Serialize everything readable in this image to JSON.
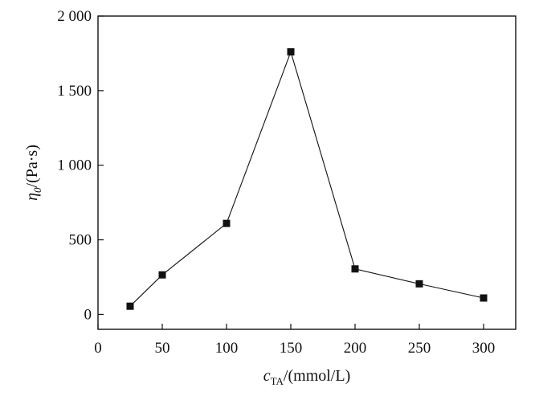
{
  "chart_data": {
    "type": "line",
    "title": "",
    "xlabel": {
      "symbol": "c",
      "subscript": "TA",
      "unit": "/(mmol/L)"
    },
    "ylabel": {
      "symbol": "η",
      "subscript": "0",
      "unit": "/(Pa·s)"
    },
    "xlim": [
      0,
      325
    ],
    "ylim": [
      -100,
      2000
    ],
    "x_ticks": [
      {
        "value": 0,
        "label": "0"
      },
      {
        "value": 50,
        "label": "50"
      },
      {
        "value": 100,
        "label": "100"
      },
      {
        "value": 150,
        "label": "150"
      },
      {
        "value": 200,
        "label": "200"
      },
      {
        "value": 250,
        "label": "250"
      },
      {
        "value": 300,
        "label": "300"
      }
    ],
    "y_ticks": [
      {
        "value": 0,
        "label": "0"
      },
      {
        "value": 500,
        "label": "500"
      },
      {
        "value": 1000,
        "label": "1 000"
      },
      {
        "value": 1500,
        "label": "1 500"
      },
      {
        "value": 2000,
        "label": "2 000"
      }
    ],
    "series": [
      {
        "x": [
          25,
          50,
          100,
          150,
          200,
          250,
          300
        ],
        "y": [
          55,
          265,
          610,
          1760,
          305,
          205,
          110
        ],
        "marker": "square",
        "color": "#111111"
      }
    ],
    "grid": false,
    "legend": "none"
  }
}
